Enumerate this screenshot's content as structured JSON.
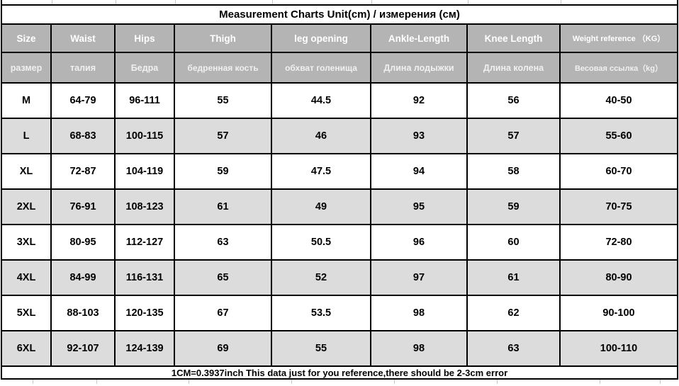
{
  "title": "Measurement  Charts    Unit(cm)  / измерения (см)",
  "footer_note": "1CM=0.3937inch      This data just for you reference,there should be 2-3cm error",
  "colors": {
    "header_bg": "#b4b4b4",
    "header_text": "#ffffff",
    "alt_row_bg": "#dcdcdc",
    "border": "#000000",
    "text": "#000000"
  },
  "chart_data": {
    "type": "table",
    "title": "Measurement Charts Unit(cm) / измерения (см)",
    "columns_en": [
      "Size",
      "Waist",
      "Hips",
      "Thigh",
      "leg opening",
      "Ankle-Length",
      "Knee Length",
      "Weight reference （KG）"
    ],
    "columns_ru": [
      "размер",
      "талия",
      "Бедра",
      "бедренная кость",
      "обхват голенища",
      "Длина лодыжки",
      "Длина колена",
      "Весовая ссылка（kg）"
    ],
    "rows": [
      [
        "M",
        "64-79",
        "96-111",
        "55",
        "44.5",
        "92",
        "56",
        "40-50"
      ],
      [
        "L",
        "68-83",
        "100-115",
        "57",
        "46",
        "93",
        "57",
        "55-60"
      ],
      [
        "XL",
        "72-87",
        "104-119",
        "59",
        "47.5",
        "94",
        "58",
        "60-70"
      ],
      [
        "2XL",
        "76-91",
        "108-123",
        "61",
        "49",
        "95",
        "59",
        "70-75"
      ],
      [
        "3XL",
        "80-95",
        "112-127",
        "63",
        "50.5",
        "96",
        "60",
        "72-80"
      ],
      [
        "4XL",
        "84-99",
        "116-131",
        "65",
        "52",
        "97",
        "61",
        "80-90"
      ],
      [
        "5XL",
        "88-103",
        "120-135",
        "67",
        "53.5",
        "98",
        "62",
        "90-100"
      ],
      [
        "6XL",
        "92-107",
        "124-139",
        "69",
        "55",
        "98",
        "63",
        "100-110"
      ]
    ],
    "note": "1CM=0.3937inch This data just for you reference,there should be 2-3cm error"
  }
}
